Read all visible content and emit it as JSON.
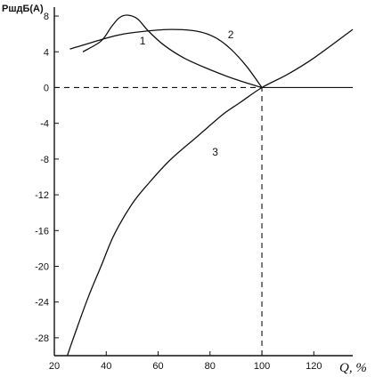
{
  "chart_data": {
    "type": "line",
    "ylabel": "PшдБ(A)",
    "xlabel": "Q, %",
    "xlim": [
      20,
      135
    ],
    "ylim": [
      -30,
      9
    ],
    "x_ticks": [
      20,
      40,
      60,
      80,
      100,
      120
    ],
    "y_ticks": [
      8,
      4,
      0,
      -4,
      -8,
      -12,
      -16,
      -20,
      -24,
      -28
    ],
    "grid": false,
    "reference_lines": [
      {
        "axis": "y",
        "value": 0,
        "style": "dashed",
        "from_x": 20,
        "to_x": 100
      },
      {
        "axis": "y",
        "value": 0,
        "style": "solid",
        "from_x": 100,
        "to_x": 135
      },
      {
        "axis": "x",
        "value": 100,
        "style": "dashed",
        "from_y": -30,
        "to_y": 0
      }
    ],
    "series": [
      {
        "name": "1",
        "points": [
          [
            31,
            4.0
          ],
          [
            38,
            5.2
          ],
          [
            42,
            6.8
          ],
          [
            45,
            7.8
          ],
          [
            48,
            8.1
          ],
          [
            52,
            7.7
          ],
          [
            56,
            6.4
          ],
          [
            62,
            4.8
          ],
          [
            70,
            3.3
          ],
          [
            80,
            2.0
          ],
          [
            90,
            0.9
          ],
          [
            100,
            0.0
          ]
        ]
      },
      {
        "name": "2",
        "points": [
          [
            26,
            4.3
          ],
          [
            35,
            5.1
          ],
          [
            45,
            5.9
          ],
          [
            55,
            6.3
          ],
          [
            65,
            6.5
          ],
          [
            75,
            6.3
          ],
          [
            82,
            5.6
          ],
          [
            88,
            4.3
          ],
          [
            94,
            2.4
          ],
          [
            100,
            0.0
          ]
        ]
      },
      {
        "name": "3",
        "points": [
          [
            25,
            -30.0
          ],
          [
            28,
            -27.5
          ],
          [
            33,
            -23.5
          ],
          [
            38,
            -20.0
          ],
          [
            43,
            -16.5
          ],
          [
            50,
            -13.0
          ],
          [
            57,
            -10.5
          ],
          [
            65,
            -8.0
          ],
          [
            75,
            -5.5
          ],
          [
            85,
            -3.0
          ],
          [
            92,
            -1.6
          ],
          [
            100,
            0.0
          ],
          [
            110,
            1.5
          ],
          [
            120,
            3.3
          ],
          [
            135,
            6.5
          ]
        ]
      }
    ],
    "labels": [
      {
        "text": "1",
        "x": 54,
        "y": 4.8,
        "series": "1"
      },
      {
        "text": "2",
        "x": 88,
        "y": 5.5,
        "series": "2"
      },
      {
        "text": "3",
        "x": 82,
        "y": -7.6,
        "series": "3"
      }
    ]
  }
}
